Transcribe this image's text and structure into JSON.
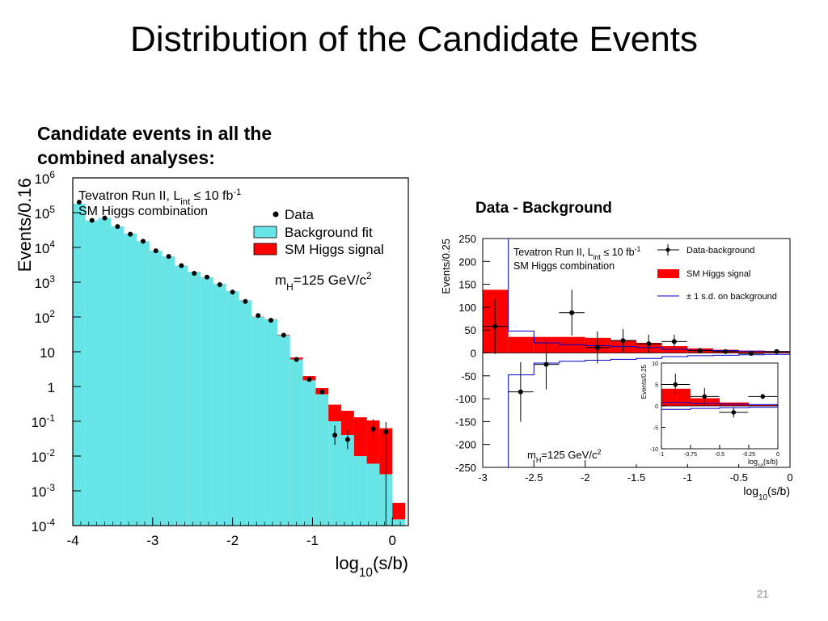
{
  "slide": {
    "title": "Distribution of the Candidate Events",
    "subtitle_line1": "Candidate events in all the",
    "subtitle_line2": "combined analyses:",
    "right_heading": "Data - Background",
    "page_number": "21"
  },
  "chart_data": [
    {
      "type": "bar",
      "scale": "log",
      "title": "",
      "xlabel": "log10(s/b)",
      "ylabel": "Events/0.16",
      "xlim": [
        -4,
        0.2
      ],
      "ylim": [
        0.0001,
        1000000
      ],
      "x_ticks": [
        "-4",
        "-3",
        "-2",
        "-1",
        "0"
      ],
      "y_ticks": [
        "10^-4",
        "10^-3",
        "10^-2",
        "10^-1",
        "1",
        "10",
        "10^2",
        "10^3",
        "10^4",
        "10^5",
        "10^6"
      ],
      "annotation_line1": "Tevatron Run II, L_int ≤ 10 fb^-1",
      "annotation_line2": "SM Higgs combination",
      "mass_label": "m_H=125 GeV/c^2",
      "legend": [
        "Data",
        "Background fit",
        "SM Higgs signal"
      ],
      "colors": {
        "background": "#66e4e6",
        "signal": "#ff0000",
        "data": "#000000"
      },
      "bin_edges": [
        -4.0,
        -3.84,
        -3.68,
        -3.52,
        -3.36,
        -3.2,
        -3.04,
        -2.88,
        -2.72,
        -2.56,
        -2.4,
        -2.24,
        -2.08,
        -1.92,
        -1.76,
        -1.6,
        -1.44,
        -1.28,
        -1.12,
        -0.96,
        -0.8,
        -0.64,
        -0.48,
        -0.32,
        -0.16,
        0.0,
        0.16
      ],
      "background": [
        180000,
        60000,
        70000,
        40000,
        25000,
        15000,
        8000,
        5500,
        3000,
        2000,
        1400,
        900,
        550,
        300,
        100,
        85,
        30,
        6,
        1.5,
        0.6,
        0.1,
        0.04,
        0.01,
        0.006,
        0.003,
        0.00015
      ],
      "signal": [
        100,
        60,
        60,
        40,
        30,
        20,
        15,
        10,
        6,
        5,
        4,
        3,
        2.5,
        1.8,
        1.5,
        1.2,
        1.0,
        0.8,
        0.5,
        0.3,
        0.2,
        0.16,
        0.12,
        0.1,
        0.06,
        0.0003
      ],
      "data_x": [
        -3.92,
        -3.76,
        -3.6,
        -3.44,
        -3.28,
        -3.12,
        -2.96,
        -2.8,
        -2.64,
        -2.48,
        -2.32,
        -2.16,
        -2.0,
        -1.84,
        -1.68,
        -1.52,
        -1.36,
        -1.2,
        -1.04,
        -0.88,
        -0.72,
        -0.56,
        -0.24,
        -0.08
      ],
      "data_y": [
        200000,
        60000,
        70000,
        40000,
        24000,
        15000,
        8000,
        5500,
        3000,
        1800,
        1400,
        850,
        520,
        280,
        110,
        80,
        30,
        6,
        1.6,
        0.7,
        0.04,
        0.03,
        0.06,
        0.05
      ]
    },
    {
      "type": "bar",
      "title": "",
      "xlabel": "log10(s/b)",
      "ylabel": "Events/0.25",
      "xlim": [
        -3,
        0
      ],
      "ylim": [
        -250,
        250
      ],
      "x_ticks": [
        "-3",
        "-2.5",
        "-2",
        "-1.5",
        "-1",
        "-0.5",
        "0"
      ],
      "y_ticks": [
        "-250",
        "-200",
        "-150",
        "-100",
        "-50",
        "0",
        "50",
        "100",
        "150",
        "200",
        "250"
      ],
      "annotation_line1": "Tevatron Run II, L_int ≤ 10 fb^-1",
      "annotation_line2": "SM Higgs combination",
      "mass_label": "m_H=125 GeV/c^2",
      "legend": [
        "Data-background",
        "SM Higgs signal",
        "± 1 s.d. on background"
      ],
      "colors": {
        "signal": "#ff0000",
        "band": "#0000cc",
        "data": "#000000"
      },
      "signal_edges": [
        -3.0,
        -2.75,
        -2.5,
        -2.25,
        -2.0,
        -1.75,
        -1.5,
        -1.25,
        -1.0,
        -0.75,
        -0.5,
        -0.25,
        0.0
      ],
      "signal": [
        138,
        35,
        35,
        35,
        33,
        28,
        22,
        15,
        10,
        7,
        5,
        3
      ],
      "band_edges": [
        -3.0,
        -2.75,
        -2.5,
        -2.25,
        -2.0,
        -1.75,
        -1.5,
        -1.25,
        -1.0,
        -0.75,
        -0.5,
        -0.25,
        0.0
      ],
      "band_upper": [
        400,
        48,
        22,
        18,
        16,
        14,
        12,
        8,
        6,
        5,
        4,
        3
      ],
      "band_lower": [
        -400,
        -48,
        -22,
        -18,
        -16,
        -14,
        -12,
        -8,
        -6,
        -5,
        -4,
        -3
      ],
      "data_x": [
        -2.88,
        -2.63,
        -2.38,
        -2.13,
        -1.88,
        -1.63,
        -1.38,
        -1.13,
        -0.88,
        -0.63,
        -0.38,
        -0.13
      ],
      "data_y": [
        58,
        -85,
        -25,
        88,
        12,
        27,
        20,
        25,
        5,
        3,
        -1,
        3
      ],
      "data_err": [
        60,
        65,
        55,
        50,
        35,
        25,
        20,
        15,
        6,
        4,
        3,
        3
      ]
    },
    {
      "type": "bar",
      "title": "",
      "xlabel": "log10(s/b)",
      "ylabel": "Events/0.25",
      "xlim": [
        -1,
        0
      ],
      "ylim": [
        -10,
        10
      ],
      "x_ticks": [
        "-1",
        "-0.75",
        "-0.5",
        "-0.25",
        "0"
      ],
      "y_ticks": [
        "-10",
        "-5",
        "0",
        "5",
        "10"
      ],
      "signal_edges": [
        -1.0,
        -0.75,
        -0.5,
        -0.25,
        0.0
      ],
      "signal": [
        4,
        1.8,
        0.8,
        0.2
      ],
      "band_upper": [
        0.8,
        0.6,
        0.4,
        0.3
      ],
      "band_lower": [
        -0.8,
        -0.6,
        -0.4,
        -0.3
      ],
      "data_x": [
        -0.88,
        -0.63,
        -0.38,
        -0.13
      ],
      "data_y": [
        5,
        2.2,
        -1.5,
        2.2
      ],
      "data_err": [
        2.5,
        2,
        1.2,
        0.6
      ]
    }
  ]
}
